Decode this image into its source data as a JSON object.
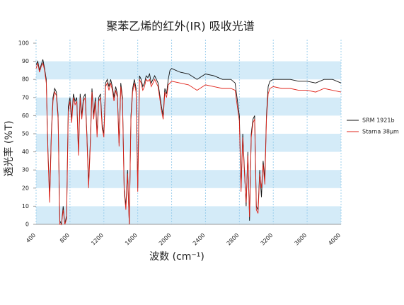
{
  "chart_data": {
    "type": "line",
    "title": "聚苯乙烯的红外(IR) 吸收光谱",
    "x_label": "波数 (cm⁻¹)",
    "y_label": "透光率 (%T)",
    "xlim": [
      400,
      4000
    ],
    "xticks": [
      400,
      800,
      1200,
      1600,
      2000,
      2400,
      2800,
      3200,
      3600,
      4000
    ],
    "ylim": [
      0,
      100
    ],
    "yticks": [
      0,
      10,
      20,
      30,
      40,
      50,
      60,
      70,
      80,
      90,
      100
    ],
    "band_color": "#d4ebf8",
    "legend": "right",
    "x": [
      400,
      420,
      440,
      460,
      480,
      500,
      520,
      540,
      560,
      580,
      600,
      620,
      640,
      660,
      680,
      700,
      720,
      740,
      760,
      780,
      800,
      820,
      840,
      860,
      880,
      900,
      920,
      940,
      960,
      980,
      1000,
      1020,
      1040,
      1060,
      1080,
      1100,
      1120,
      1140,
      1160,
      1180,
      1200,
      1220,
      1240,
      1260,
      1280,
      1300,
      1320,
      1340,
      1360,
      1380,
      1400,
      1420,
      1440,
      1460,
      1480,
      1500,
      1520,
      1540,
      1560,
      1580,
      1600,
      1620,
      1640,
      1660,
      1680,
      1700,
      1720,
      1740,
      1760,
      1800,
      1840,
      1880,
      1900,
      1920,
      1940,
      1960,
      1980,
      2000,
      2100,
      2200,
      2300,
      2400,
      2500,
      2600,
      2700,
      2750,
      2800,
      2820,
      2840,
      2860,
      2880,
      2900,
      2920,
      2940,
      2960,
      2980,
      3000,
      3020,
      3040,
      3060,
      3080,
      3100,
      3120,
      3140,
      3160,
      3200,
      3300,
      3400,
      3500,
      3600,
      3700,
      3800,
      3900,
      4000
    ],
    "series": [
      {
        "name": "SRM 1921b",
        "color": "#111111",
        "values": [
          88,
          90,
          85,
          88,
          91,
          86,
          80,
          40,
          15,
          50,
          70,
          75,
          73,
          60,
          2,
          0,
          10,
          0,
          5,
          65,
          70,
          58,
          72,
          68,
          70,
          40,
          72,
          60,
          70,
          72,
          50,
          22,
          45,
          75,
          60,
          70,
          50,
          70,
          72,
          55,
          50,
          78,
          80,
          76,
          80,
          76,
          70,
          76,
          72,
          45,
          78,
          70,
          20,
          10,
          30,
          0,
          60,
          75,
          80,
          75,
          20,
          82,
          80,
          76,
          78,
          82,
          81,
          83,
          78,
          82,
          78,
          65,
          60,
          75,
          72,
          80,
          85,
          86,
          84,
          83,
          80,
          83,
          82,
          80,
          80,
          78,
          60,
          20,
          50,
          30,
          10,
          40,
          2,
          50,
          58,
          60,
          10,
          8,
          30,
          15,
          35,
          25,
          60,
          76,
          79,
          80,
          80,
          80,
          79,
          79,
          78,
          80,
          80,
          78
        ]
      },
      {
        "name": "Starna 38μm",
        "color": "#e0241b",
        "values": [
          86,
          89,
          84,
          87,
          89,
          85,
          78,
          38,
          12,
          48,
          68,
          73,
          71,
          58,
          0,
          0,
          8,
          0,
          3,
          62,
          68,
          56,
          70,
          66,
          68,
          38,
          70,
          58,
          68,
          70,
          48,
          20,
          43,
          73,
          58,
          68,
          48,
          68,
          70,
          53,
          48,
          76,
          78,
          74,
          78,
          74,
          68,
          74,
          70,
          43,
          76,
          68,
          18,
          8,
          28,
          0,
          58,
          73,
          78,
          73,
          18,
          80,
          78,
          74,
          76,
          80,
          79,
          80,
          76,
          80,
          76,
          63,
          58,
          73,
          70,
          77,
          78,
          79,
          78,
          77,
          74,
          77,
          76,
          75,
          75,
          74,
          57,
          18,
          48,
          28,
          12,
          38,
          4,
          48,
          56,
          58,
          8,
          6,
          28,
          20,
          33,
          22,
          58,
          72,
          75,
          76,
          75,
          75,
          74,
          74,
          73,
          75,
          74,
          73
        ]
      }
    ]
  }
}
